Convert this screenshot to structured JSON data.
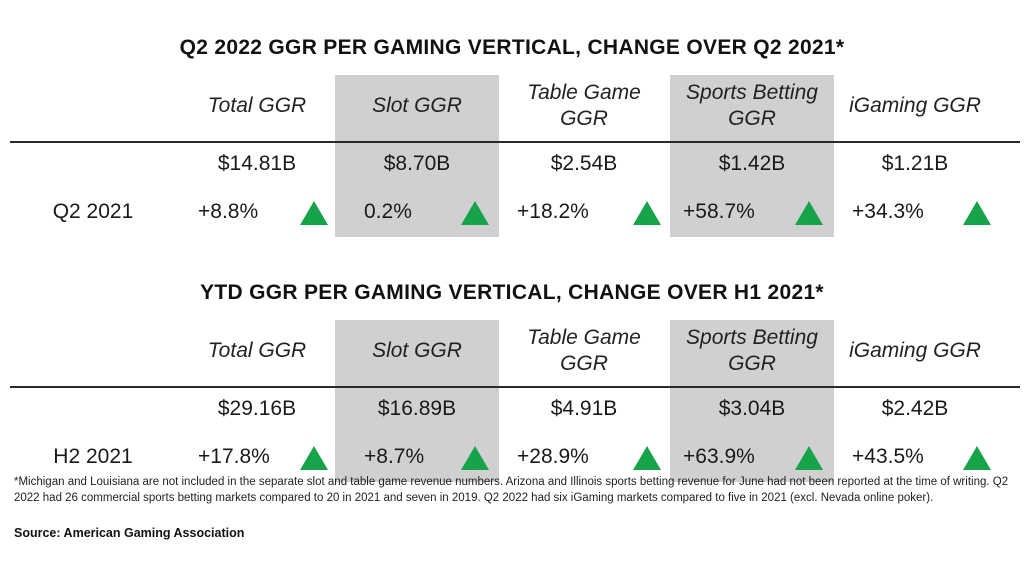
{
  "chart_data": [
    {
      "type": "table",
      "title": "Q2 2022 GGR PER GAMING VERTICAL, CHANGE OVER Q2 2021*",
      "columns": [
        "Total GGR",
        "Slot GGR",
        "Table Game GGR",
        "Sports Betting GGR",
        "iGaming GGR"
      ],
      "highlighted_columns": [
        1,
        3
      ],
      "values": [
        "$14.81B",
        "$8.70B",
        "$2.54B",
        "$1.42B",
        "$1.21B"
      ],
      "row_label": "Q2 2021",
      "changes": [
        "+8.8%",
        "0.2%",
        "+18.2%",
        "+58.7%",
        "+34.3%"
      ],
      "change_direction": [
        "up",
        "up",
        "up",
        "up",
        "up"
      ]
    },
    {
      "type": "table",
      "title": "YTD GGR PER GAMING VERTICAL, CHANGE OVER H1 2021*",
      "columns": [
        "Total GGR",
        "Slot GGR",
        "Table Game GGR",
        "Sports Betting GGR",
        "iGaming GGR"
      ],
      "highlighted_columns": [
        1,
        3
      ],
      "values": [
        "$29.16B",
        "$16.89B",
        "$4.91B",
        "$3.04B",
        "$2.42B"
      ],
      "row_label": "H2 2021",
      "changes": [
        "+17.8%",
        "+8.7%",
        "+28.9%",
        "+63.9%",
        "+43.5%"
      ],
      "change_direction": [
        "up",
        "up",
        "up",
        "up",
        "up"
      ]
    }
  ],
  "colors": {
    "up_arrow": "#16a34a",
    "shade": "#d0d0d0"
  },
  "footnote": "*Michigan and Louisiana are not included in the separate slot and table game revenue numbers. Arizona and Illinois sports betting revenue for June had not been reported at the time of writing. Q2 2022 had 26 commercial sports betting markets compared to 20 in 2021 and seven in 2019. Q2 2022 had six iGaming markets compared to five in 2021 (excl. Nevada online poker).",
  "source": "Source: American Gaming Association"
}
